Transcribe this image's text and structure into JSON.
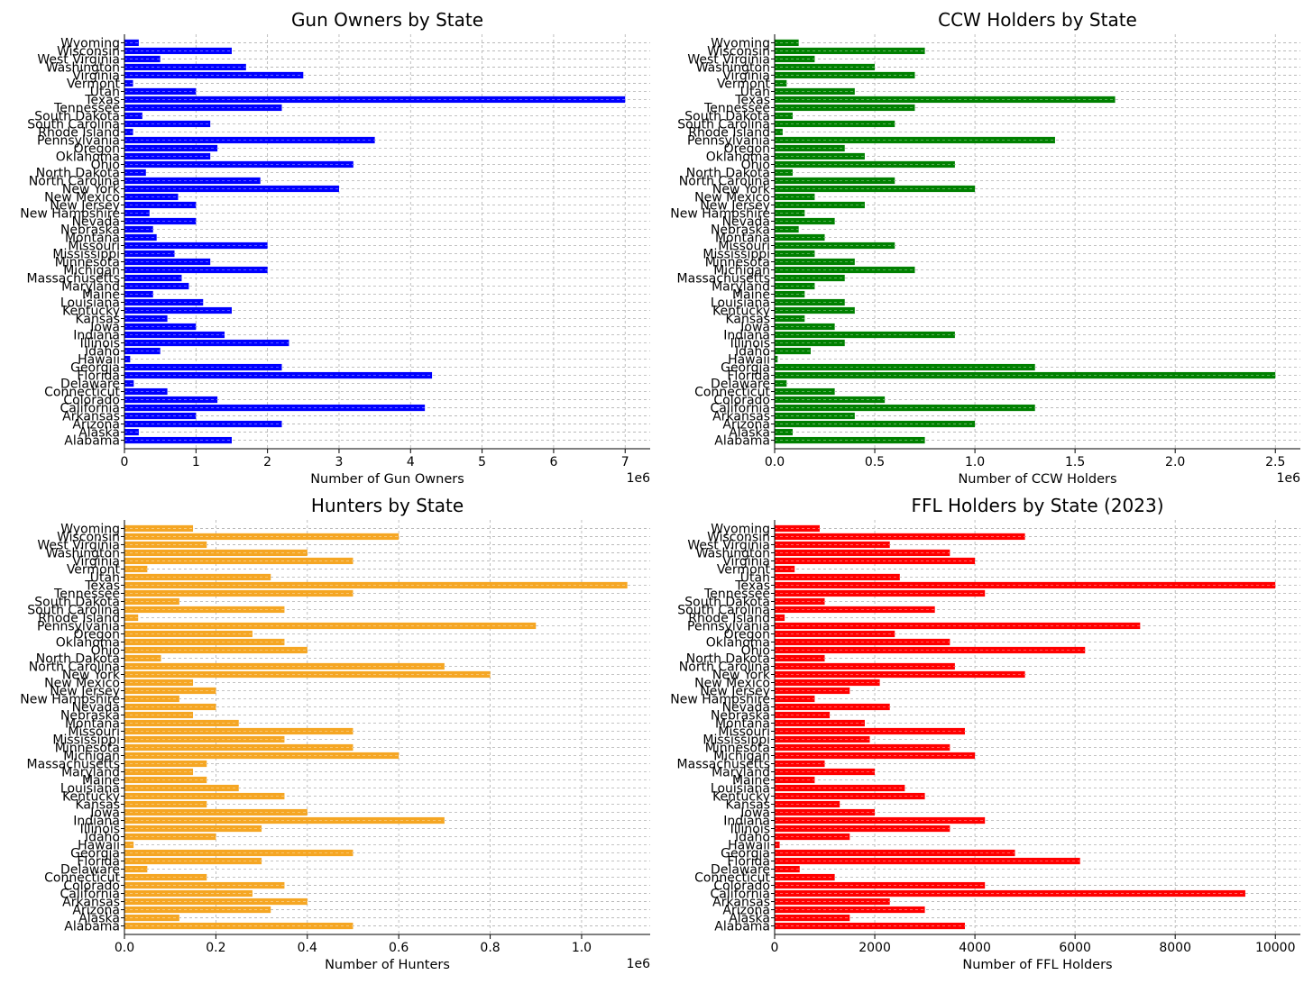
{
  "chart_data": [
    {
      "type": "bar",
      "orientation": "horizontal",
      "title": "Gun Owners by State",
      "xlabel": "Number of Gun Owners",
      "ylabel": "",
      "offset_label": "1e6",
      "color": "#0000ff",
      "xlim": [
        0,
        7350000
      ],
      "xticks": [
        0,
        1000000,
        2000000,
        3000000,
        4000000,
        5000000,
        6000000,
        7000000
      ],
      "xtick_labels": [
        "0",
        "1",
        "2",
        "3",
        "4",
        "5",
        "6",
        "7"
      ],
      "grid": true,
      "categories": [
        "Alabama",
        "Alaska",
        "Arizona",
        "Arkansas",
        "California",
        "Colorado",
        "Connecticut",
        "Delaware",
        "Florida",
        "Georgia",
        "Hawaii",
        "Idaho",
        "Illinois",
        "Indiana",
        "Iowa",
        "Kansas",
        "Kentucky",
        "Louisiana",
        "Maine",
        "Maryland",
        "Massachusetts",
        "Michigan",
        "Minnesota",
        "Mississippi",
        "Missouri",
        "Montana",
        "Nebraska",
        "Nevada",
        "New Hampshire",
        "New Jersey",
        "New Mexico",
        "New York",
        "North Carolina",
        "North Dakota",
        "Ohio",
        "Oklahoma",
        "Oregon",
        "Pennsylvania",
        "Rhode Island",
        "South Carolina",
        "South Dakota",
        "Tennessee",
        "Texas",
        "Utah",
        "Vermont",
        "Virginia",
        "Washington",
        "West Virginia",
        "Wisconsin",
        "Wyoming"
      ],
      "values": [
        1500000,
        200000,
        2200000,
        1000000,
        4200000,
        1300000,
        600000,
        130000,
        4300000,
        2200000,
        80000,
        500000,
        2300000,
        1400000,
        1000000,
        600000,
        1500000,
        1100000,
        400000,
        900000,
        800000,
        2000000,
        1200000,
        700000,
        2000000,
        450000,
        400000,
        1000000,
        350000,
        1000000,
        750000,
        3000000,
        1900000,
        300000,
        3200000,
        1200000,
        1300000,
        3500000,
        120000,
        1200000,
        250000,
        2200000,
        7000000,
        1000000,
        120000,
        2500000,
        1700000,
        500000,
        1500000,
        200000
      ]
    },
    {
      "type": "bar",
      "orientation": "horizontal",
      "title": "CCW Holders by State",
      "xlabel": "Number of CCW Holders",
      "ylabel": "",
      "offset_label": "1e6",
      "color": "#008000",
      "xlim": [
        0,
        2625000
      ],
      "xticks": [
        0,
        500000,
        1000000,
        1500000,
        2000000,
        2500000
      ],
      "xtick_labels": [
        "0.0",
        "0.5",
        "1.0",
        "1.5",
        "2.0",
        "2.5"
      ],
      "grid": true,
      "categories": [
        "Alabama",
        "Alaska",
        "Arizona",
        "Arkansas",
        "California",
        "Colorado",
        "Connecticut",
        "Delaware",
        "Florida",
        "Georgia",
        "Hawaii",
        "Idaho",
        "Illinois",
        "Indiana",
        "Iowa",
        "Kansas",
        "Kentucky",
        "Louisiana",
        "Maine",
        "Maryland",
        "Massachusetts",
        "Michigan",
        "Minnesota",
        "Mississippi",
        "Missouri",
        "Montana",
        "Nebraska",
        "Nevada",
        "New Hampshire",
        "New Jersey",
        "New Mexico",
        "New York",
        "North Carolina",
        "North Dakota",
        "Ohio",
        "Oklahoma",
        "Oregon",
        "Pennsylvania",
        "Rhode Island",
        "South Carolina",
        "South Dakota",
        "Tennessee",
        "Texas",
        "Utah",
        "Vermont",
        "Virginia",
        "Washington",
        "West Virginia",
        "Wisconsin",
        "Wyoming"
      ],
      "values": [
        750000,
        90000,
        1000000,
        400000,
        1300000,
        550000,
        300000,
        60000,
        2500000,
        1300000,
        15000,
        180000,
        350000,
        900000,
        300000,
        150000,
        400000,
        350000,
        150000,
        200000,
        350000,
        700000,
        400000,
        200000,
        600000,
        250000,
        120000,
        300000,
        150000,
        450000,
        200000,
        1000000,
        600000,
        90000,
        900000,
        450000,
        350000,
        1400000,
        40000,
        600000,
        90000,
        700000,
        1700000,
        400000,
        60000,
        700000,
        500000,
        200000,
        750000,
        120000
      ]
    },
    {
      "type": "bar",
      "orientation": "horizontal",
      "title": "Hunters by State",
      "xlabel": "Number of Hunters",
      "ylabel": "",
      "offset_label": "1e6",
      "color": "#f5a623",
      "xlim": [
        0,
        1150000
      ],
      "xticks": [
        0,
        200000,
        400000,
        600000,
        800000,
        1000000
      ],
      "xtick_labels": [
        "0.0",
        "0.2",
        "0.4",
        "0.6",
        "0.8",
        "1.0"
      ],
      "grid": true,
      "categories": [
        "Alabama",
        "Alaska",
        "Arizona",
        "Arkansas",
        "California",
        "Colorado",
        "Connecticut",
        "Delaware",
        "Florida",
        "Georgia",
        "Hawaii",
        "Idaho",
        "Illinois",
        "Indiana",
        "Iowa",
        "Kansas",
        "Kentucky",
        "Louisiana",
        "Maine",
        "Maryland",
        "Massachusetts",
        "Michigan",
        "Minnesota",
        "Mississippi",
        "Missouri",
        "Montana",
        "Nebraska",
        "Nevada",
        "New Hampshire",
        "New Jersey",
        "New Mexico",
        "New York",
        "North Carolina",
        "North Dakota",
        "Ohio",
        "Oklahoma",
        "Oregon",
        "Pennsylvania",
        "Rhode Island",
        "South Carolina",
        "South Dakota",
        "Tennessee",
        "Texas",
        "Utah",
        "Vermont",
        "Virginia",
        "Washington",
        "West Virginia",
        "Wisconsin",
        "Wyoming"
      ],
      "values": [
        500000,
        120000,
        320000,
        400000,
        280000,
        350000,
        180000,
        50000,
        300000,
        500000,
        20000,
        200000,
        300000,
        700000,
        400000,
        180000,
        350000,
        250000,
        180000,
        150000,
        180000,
        600000,
        500000,
        350000,
        500000,
        250000,
        150000,
        200000,
        120000,
        200000,
        150000,
        800000,
        700000,
        80000,
        400000,
        350000,
        280000,
        900000,
        30000,
        350000,
        120000,
        500000,
        1100000,
        320000,
        50000,
        500000,
        400000,
        180000,
        600000,
        150000
      ]
    },
    {
      "type": "bar",
      "orientation": "horizontal",
      "title": "FFL Holders by State (2023)",
      "xlabel": "Number of FFL Holders",
      "ylabel": "",
      "offset_label": "",
      "color": "#ff0000",
      "xlim": [
        0,
        10500
      ],
      "xticks": [
        0,
        2000,
        4000,
        6000,
        8000,
        10000
      ],
      "xtick_labels": [
        "0",
        "2000",
        "4000",
        "6000",
        "8000",
        "10000"
      ],
      "grid": true,
      "categories": [
        "Alabama",
        "Alaska",
        "Arizona",
        "Arkansas",
        "California",
        "Colorado",
        "Connecticut",
        "Delaware",
        "Florida",
        "Georgia",
        "Hawaii",
        "Idaho",
        "Illinois",
        "Indiana",
        "Iowa",
        "Kansas",
        "Kentucky",
        "Louisiana",
        "Maine",
        "Maryland",
        "Massachusetts",
        "Michigan",
        "Minnesota",
        "Mississippi",
        "Missouri",
        "Montana",
        "Nebraska",
        "Nevada",
        "New Hampshire",
        "New Jersey",
        "New Mexico",
        "New York",
        "North Carolina",
        "North Dakota",
        "Ohio",
        "Oklahoma",
        "Oregon",
        "Pennsylvania",
        "Rhode Island",
        "South Carolina",
        "South Dakota",
        "Tennessee",
        "Texas",
        "Utah",
        "Vermont",
        "Virginia",
        "Washington",
        "West Virginia",
        "Wisconsin",
        "Wyoming"
      ],
      "values": [
        3800,
        1500,
        3000,
        2300,
        9400,
        4200,
        1200,
        500,
        6100,
        4800,
        100,
        1500,
        3500,
        4200,
        2000,
        1300,
        3000,
        2600,
        800,
        2000,
        1000,
        4000,
        3500,
        1900,
        3800,
        1800,
        1100,
        2300,
        800,
        1500,
        2100,
        5000,
        3600,
        1000,
        6200,
        3500,
        2400,
        7300,
        200,
        3200,
        1000,
        4200,
        10000,
        2500,
        400,
        4000,
        3500,
        2300,
        5000,
        900
      ]
    }
  ]
}
